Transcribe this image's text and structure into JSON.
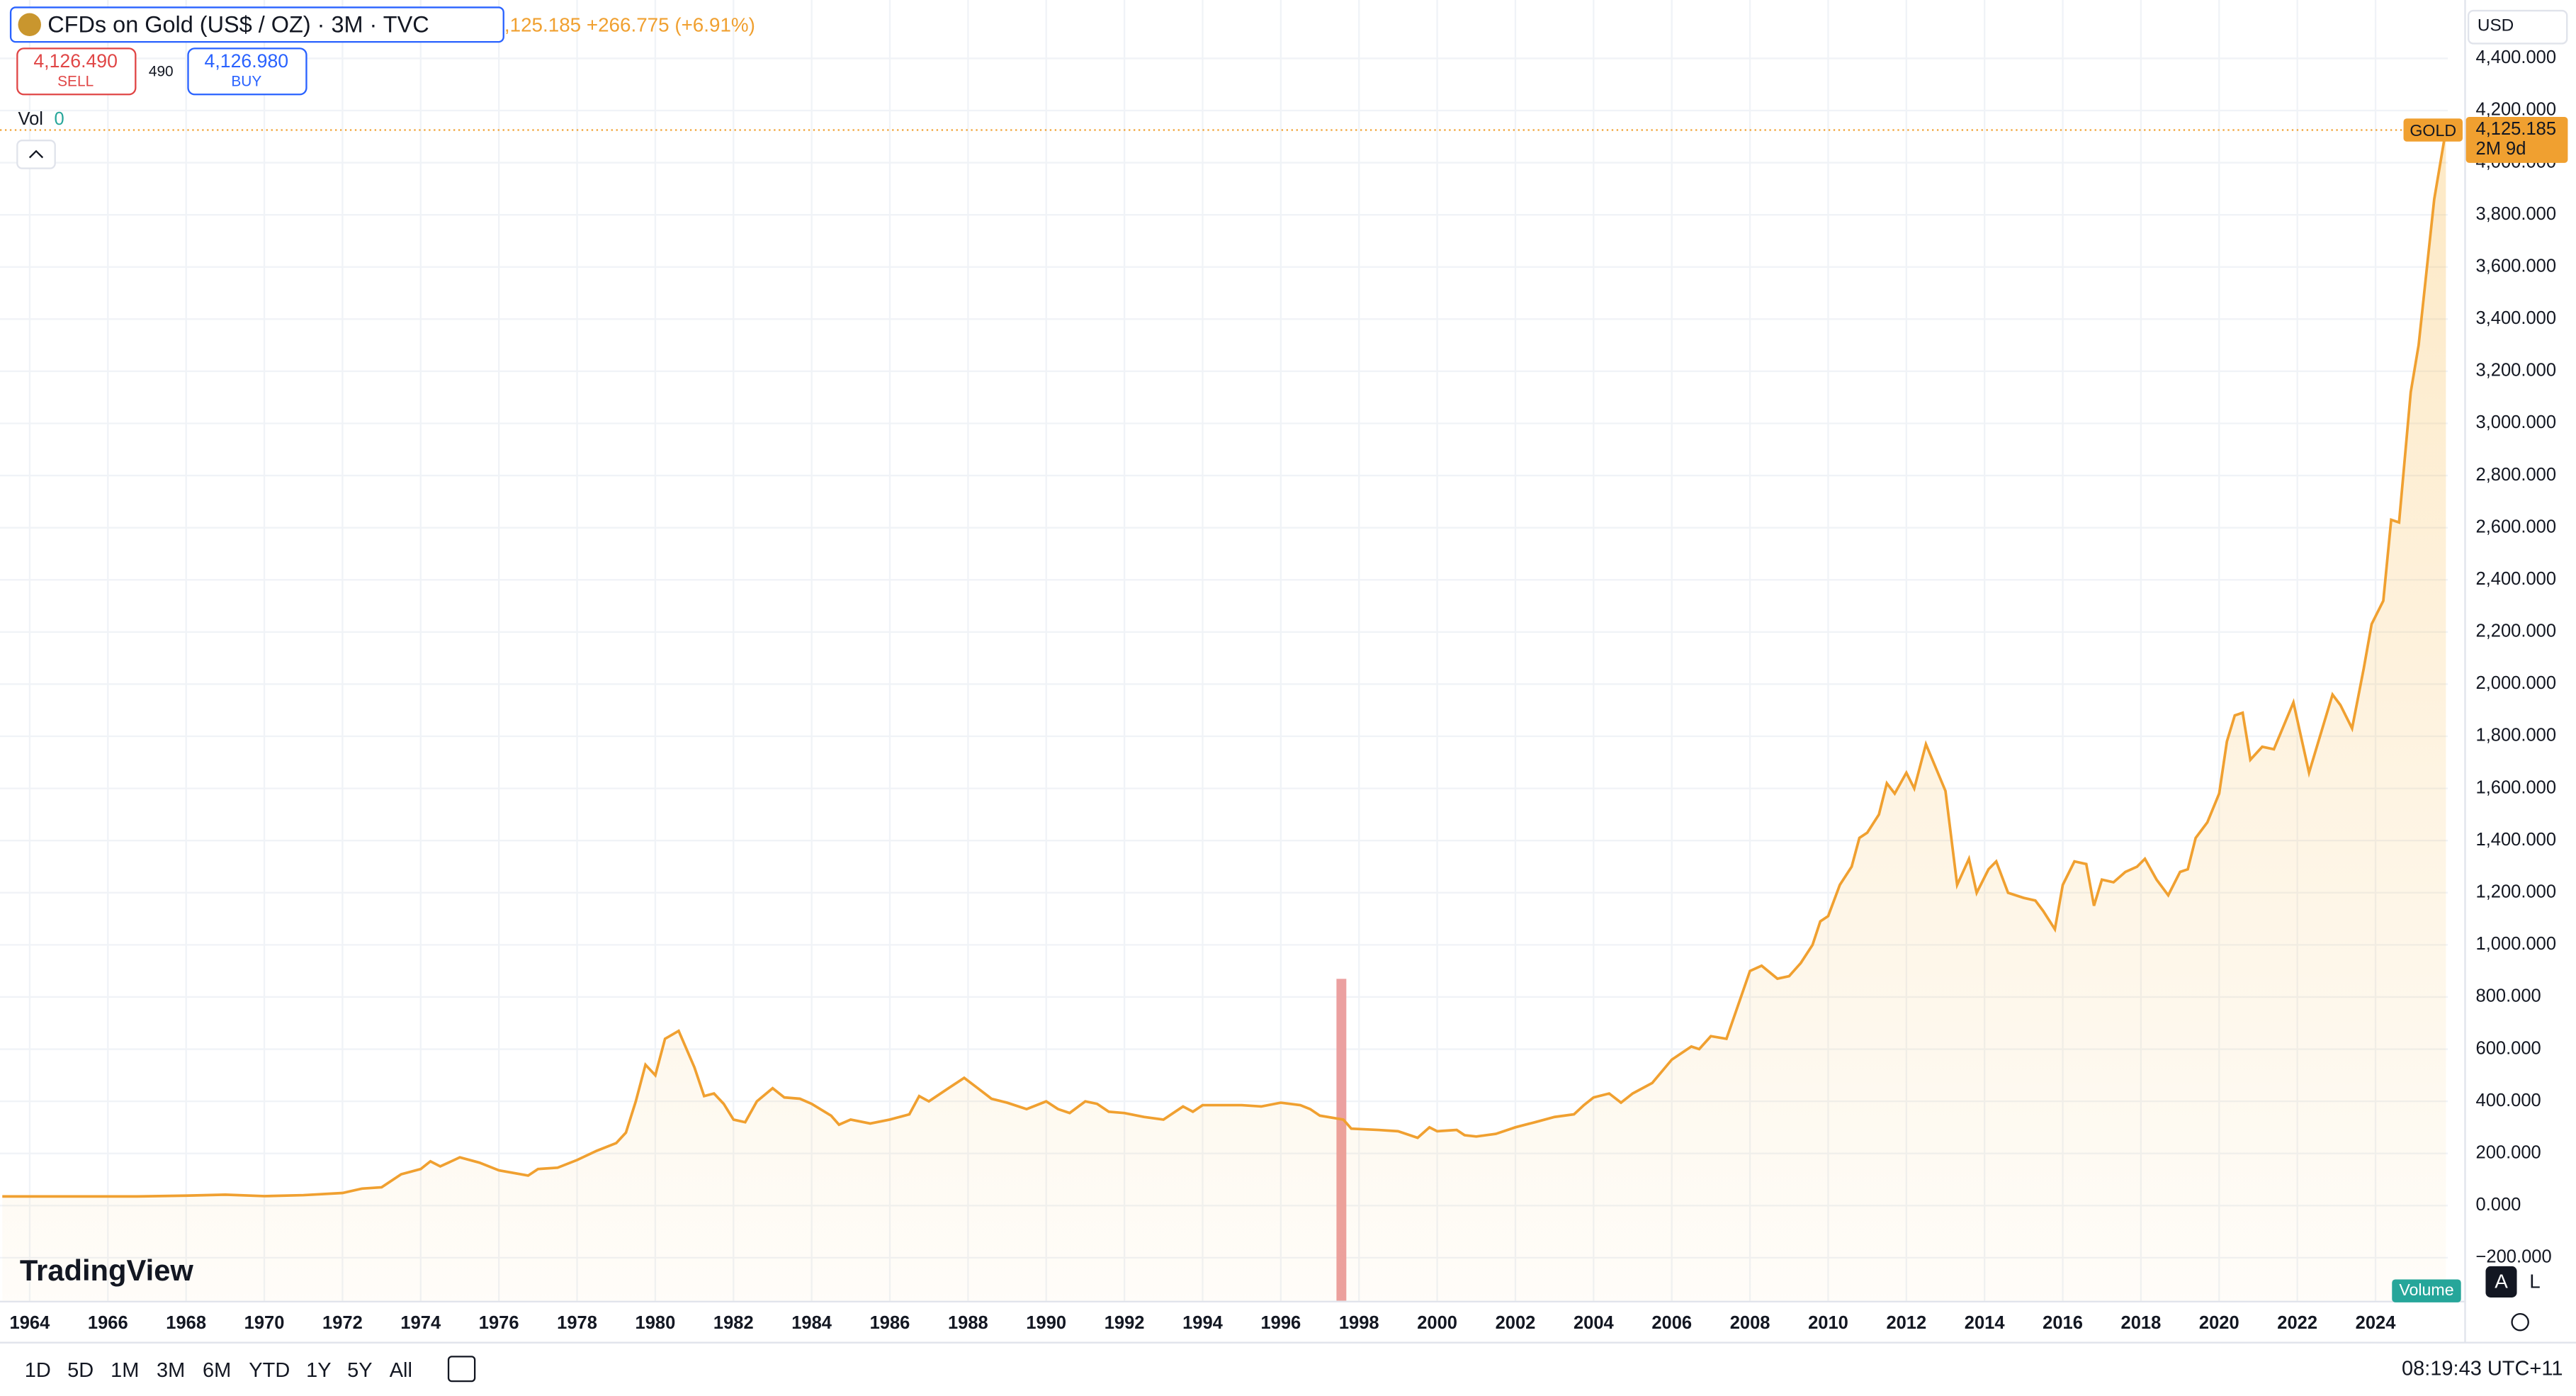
{
  "header": {
    "symbol": "CFDs on Gold (US$ / OZ) · 3M · TVC",
    "change": ",125.185 +266.775 (+6.91%)",
    "sell_price": "4,126.490",
    "sell": "SELL",
    "spread": "490",
    "buy_price": "4,126.980",
    "buy": "BUY",
    "vol": "Vol",
    "vol_value": "0",
    "currency": "USD",
    "tag": "GOLD",
    "countdown": "2M 9d",
    "logo": "TradingView",
    "volume": "Volume",
    "auto": "A",
    "log": "L"
  },
  "toolbar": {
    "ranges": [
      "1D",
      "5D",
      "1M",
      "3M",
      "6M",
      "YTD",
      "1Y",
      "5Y",
      "All"
    ],
    "clock": "08:19:43 UTC+11"
  },
  "chart_data": {
    "type": "area",
    "color": "#f0a030",
    "grid": true,
    "x": [
      1963.3,
      1966.75,
      1968,
      1969,
      1970,
      1971,
      1972,
      1972.5,
      1973,
      1973.5,
      1974,
      1974.25,
      1974.5,
      1975,
      1975.5,
      1976,
      1976.75,
      1977,
      1977.5,
      1978,
      1978.5,
      1979,
      1979.25,
      1979.5,
      1979.75,
      1980,
      1980.25,
      1980.6,
      1981,
      1981.25,
      1981.5,
      1981.75,
      1982,
      1982.3,
      1982.6,
      1983,
      1983.3,
      1983.7,
      1984,
      1984.5,
      1984.7,
      1985,
      1985.5,
      1986,
      1986.5,
      1986.75,
      1987,
      1987.5,
      1987.9,
      1988.25,
      1988.6,
      1989,
      1989.5,
      1990,
      1990.3,
      1990.6,
      1991,
      1991.3,
      1991.6,
      1992,
      1992.5,
      1993,
      1993.5,
      1993.75,
      1994,
      1995,
      1995.5,
      1996,
      1996.5,
      1996.75,
      1997,
      1997.6,
      1997.8,
      1998.5,
      1999,
      1999.5,
      1999.8,
      2000,
      2000.5,
      2000.7,
      2001,
      2001.5,
      2002,
      2002.5,
      2003,
      2003.5,
      2003.75,
      2004,
      2004.4,
      2004.7,
      2005,
      2005.5,
      2006,
      2006.5,
      2006.7,
      2007,
      2007.4,
      2008,
      2008.3,
      2008.7,
      2009,
      2009.3,
      2009.6,
      2009.8,
      2010,
      2010.3,
      2010.6,
      2010.8,
      2011,
      2011.3,
      2011.5,
      2011.7,
      2012,
      2012.2,
      2012.5,
      2013,
      2013.3,
      2013.6,
      2013.8,
      2014.1,
      2014.3,
      2014.6,
      2015,
      2015.3,
      2015.5,
      2015.8,
      2016,
      2016.3,
      2016.6,
      2016.8,
      2017,
      2017.3,
      2017.6,
      2017.9,
      2018.1,
      2018.4,
      2018.7,
      2019,
      2019.2,
      2019.4,
      2019.7,
      2020,
      2020.2,
      2020.4,
      2020.6,
      2020.8,
      2021.1,
      2021.4,
      2021.9,
      2022.3,
      2022.9,
      2023.1,
      2023.4,
      2023.7,
      2023.9,
      2024.2,
      2024.4,
      2024.6,
      2024.9,
      2025.1,
      2025.5,
      2025.8
    ],
    "values": [
      35,
      35,
      38,
      42,
      36,
      40,
      48,
      65,
      70,
      120,
      140,
      170,
      150,
      185,
      165,
      135,
      115,
      140,
      145,
      175,
      210,
      240,
      280,
      400,
      540,
      500,
      640,
      670,
      530,
      420,
      430,
      390,
      330,
      320,
      400,
      450,
      415,
      410,
      390,
      345,
      310,
      330,
      315,
      330,
      350,
      420,
      400,
      450,
      490,
      450,
      410,
      395,
      370,
      400,
      370,
      355,
      400,
      390,
      360,
      355,
      340,
      330,
      380,
      360,
      385,
      385,
      380,
      395,
      385,
      370,
      345,
      330,
      295,
      290,
      285,
      260,
      300,
      285,
      290,
      270,
      265,
      275,
      300,
      320,
      340,
      350,
      385,
      415,
      430,
      395,
      430,
      470,
      560,
      610,
      600,
      650,
      640,
      900,
      920,
      870,
      880,
      930,
      1000,
      1090,
      1110,
      1230,
      1300,
      1410,
      1430,
      1500,
      1620,
      1580,
      1660,
      1600,
      1770,
      1590,
      1230,
      1330,
      1200,
      1290,
      1320,
      1200,
      1180,
      1170,
      1130,
      1060,
      1230,
      1320,
      1310,
      1150,
      1250,
      1240,
      1280,
      1300,
      1330,
      1250,
      1190,
      1280,
      1290,
      1410,
      1470,
      1580,
      1780,
      1880,
      1890,
      1710,
      1760,
      1750,
      1930,
      1660,
      1960,
      1920,
      1830,
      2060,
      2230,
      2320,
      2630,
      2620,
      3120,
      3300,
      3860,
      4125.185
    ],
    "last_price": {
      "value": 4125.185,
      "label": "4,125.185"
    },
    "xlim": [
      1963.24,
      2025.85
    ],
    "xticks": [
      1964,
      1966,
      1968,
      1970,
      1972,
      1974,
      1976,
      1978,
      1980,
      1982,
      1984,
      1986,
      1988,
      1990,
      1992,
      1994,
      1996,
      1998,
      2000,
      2002,
      2004,
      2006,
      2008,
      2010,
      2012,
      2014,
      2016,
      2018,
      2020,
      2022,
      2024
    ],
    "ylim": [
      -365,
      4624
    ],
    "yticks": [
      {
        "value": -200,
        "label": "−200.000"
      },
      {
        "value": 0,
        "label": "0.000"
      },
      {
        "value": 200,
        "label": "200.000"
      },
      {
        "value": 400,
        "label": "400.000"
      },
      {
        "value": 600,
        "label": "600.000"
      },
      {
        "value": 800,
        "label": "800.000"
      },
      {
        "value": 1000,
        "label": "1,000.000"
      },
      {
        "value": 1200,
        "label": "1,200.000"
      },
      {
        "value": 1400,
        "label": "1,400.000"
      },
      {
        "value": 1600,
        "label": "1,600.000"
      },
      {
        "value": 1800,
        "label": "1,800.000"
      },
      {
        "value": 2000,
        "label": "2,000.000"
      },
      {
        "value": 2200,
        "label": "2,200.000"
      },
      {
        "value": 2400,
        "label": "2,400.000"
      },
      {
        "value": 2600,
        "label": "2,600.000"
      },
      {
        "value": 2800,
        "label": "2,800.000"
      },
      {
        "value": 3000,
        "label": "3,000.000"
      },
      {
        "value": 3200,
        "label": "3,200.000"
      },
      {
        "value": 3400,
        "label": "3,400.000"
      },
      {
        "value": 3600,
        "label": "3,600.000"
      },
      {
        "value": 3800,
        "label": "3,800.000"
      },
      {
        "value": 4000,
        "label": "4,000.000"
      },
      {
        "value": 4200,
        "label": "4,200.000"
      },
      {
        "value": 4400,
        "label": "4,400.000"
      }
    ]
  }
}
